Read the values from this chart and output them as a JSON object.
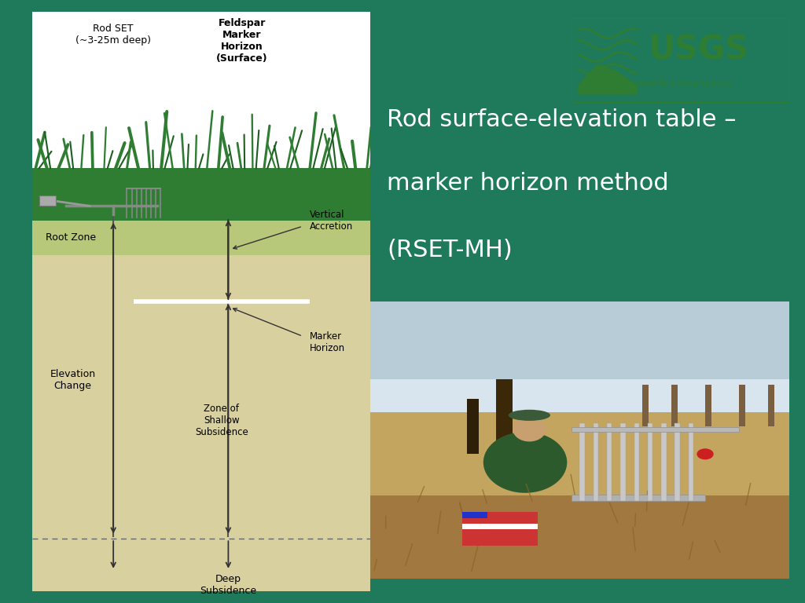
{
  "bg_color": "#1e7a5a",
  "title_line1": "Rod surface-elevation table –",
  "title_line2": "marker horizon method",
  "title_line3": "(RSET-MH)",
  "title_color": "#ffffff",
  "title_fontsize": 22,
  "diagram_bg": "#e8e0b5",
  "white_top_color": "#ffffff",
  "grass_color": "#2e7d32",
  "grass_dark": "#1b5e20",
  "root_zone_color": "#b8c87a",
  "soil_color": "#d9d0a0",
  "rod_set_label": "Rod SET\n(~3-25m deep)",
  "feldspar_label": "Feldspar\nMarker\nHorizon\n(Surface)",
  "root_zone_label": "Root Zone",
  "vertical_accretion_label": "Vertical\nAccretion",
  "marker_horizon_label": "Marker\nHorizon",
  "elevation_change_label": "Elevation\nChange",
  "zone_shallow_label": "Zone of\nShallow\nSubsidence",
  "deep_subsidence_label": "Deep\nSubsidence",
  "arrow_color": "#333333",
  "line_color": "#555555",
  "label_fontsize": 9,
  "usgs_green": "#2e7d32",
  "photo_bg": "#8B7355",
  "sky_color": "#b8ccd8",
  "tree_color": "#2d2010",
  "dry_grass_color": "#b09050",
  "equipment_color": "#c8c8c8"
}
